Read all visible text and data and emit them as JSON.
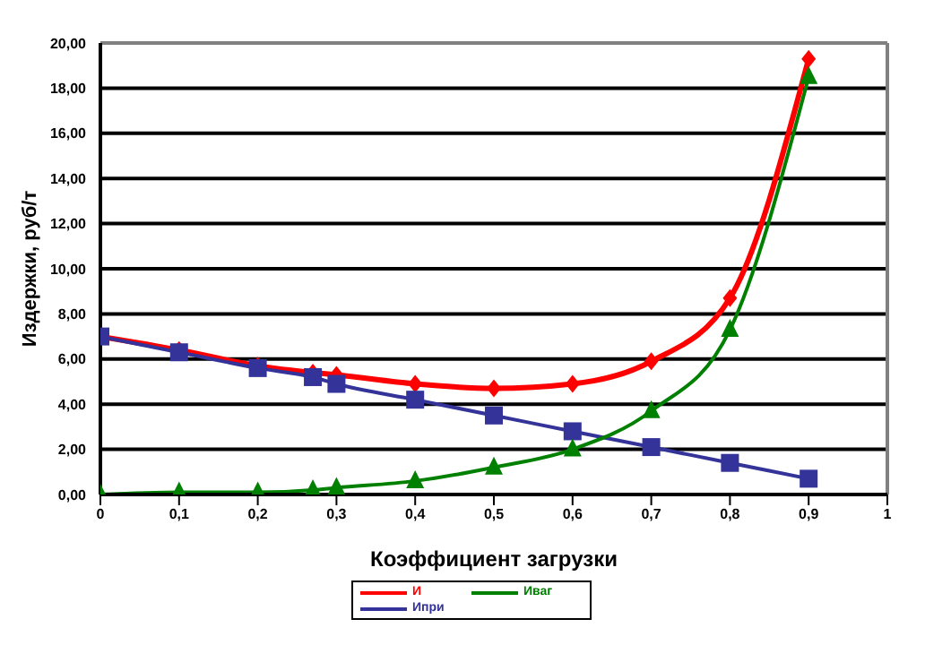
{
  "chart_data": {
    "type": "line",
    "xlabel": "Коэффициент загрузки",
    "ylabel": "Издержки, руб/т",
    "x": [
      0,
      0.1,
      0.2,
      0.27,
      0.3,
      0.4,
      0.5,
      0.6,
      0.7,
      0.8,
      0.9
    ],
    "series": [
      {
        "name": "И",
        "color": "#ff0000",
        "marker": "diamond",
        "values": [
          7.0,
          6.4,
          5.7,
          5.4,
          5.3,
          4.9,
          4.7,
          4.9,
          5.9,
          8.7,
          19.3
        ]
      },
      {
        "name": "Ипри",
        "color": "#333399",
        "marker": "square",
        "values": [
          7.0,
          6.3,
          5.6,
          5.2,
          4.9,
          4.2,
          3.5,
          2.8,
          2.1,
          1.4,
          0.7
        ]
      },
      {
        "name": "Иваг",
        "color": "#008000",
        "marker": "triangle",
        "values": [
          0,
          0.1,
          0.1,
          0.2,
          0.3,
          0.6,
          1.2,
          2.0,
          3.7,
          7.3,
          18.5
        ]
      }
    ],
    "xlim": [
      0,
      1
    ],
    "xticks": [
      0,
      {
        "value": 0.1,
        "label": "0,1"
      },
      {
        "value": 0.2,
        "label": "0,2"
      },
      {
        "value": 0.3,
        "label": "0,3"
      },
      {
        "value": 0.4,
        "label": "0,4"
      },
      {
        "value": 0.5,
        "label": "0,5"
      },
      {
        "value": 0.6,
        "label": "0,6"
      },
      {
        "value": 0.7,
        "label": "0,7"
      },
      {
        "value": 0.8,
        "label": "0,8"
      },
      {
        "value": 0.9,
        "label": "0,9"
      },
      1
    ],
    "ylim": [
      0,
      20
    ],
    "yticks": [
      {
        "value": 0,
        "label": "0,00"
      },
      {
        "value": 2,
        "label": "2,00"
      },
      {
        "value": 4,
        "label": "4,00"
      },
      {
        "value": 6,
        "label": "6,00"
      },
      {
        "value": 8,
        "label": "8,00"
      },
      {
        "value": 10,
        "label": "10,00"
      },
      {
        "value": 12,
        "label": "12,00"
      },
      {
        "value": 14,
        "label": "14,00"
      },
      {
        "value": 16,
        "label": "16,00"
      },
      {
        "value": 18,
        "label": "18,00"
      },
      {
        "value": 20,
        "label": "20,00"
      }
    ],
    "grid": "y",
    "legend": "bottom"
  }
}
